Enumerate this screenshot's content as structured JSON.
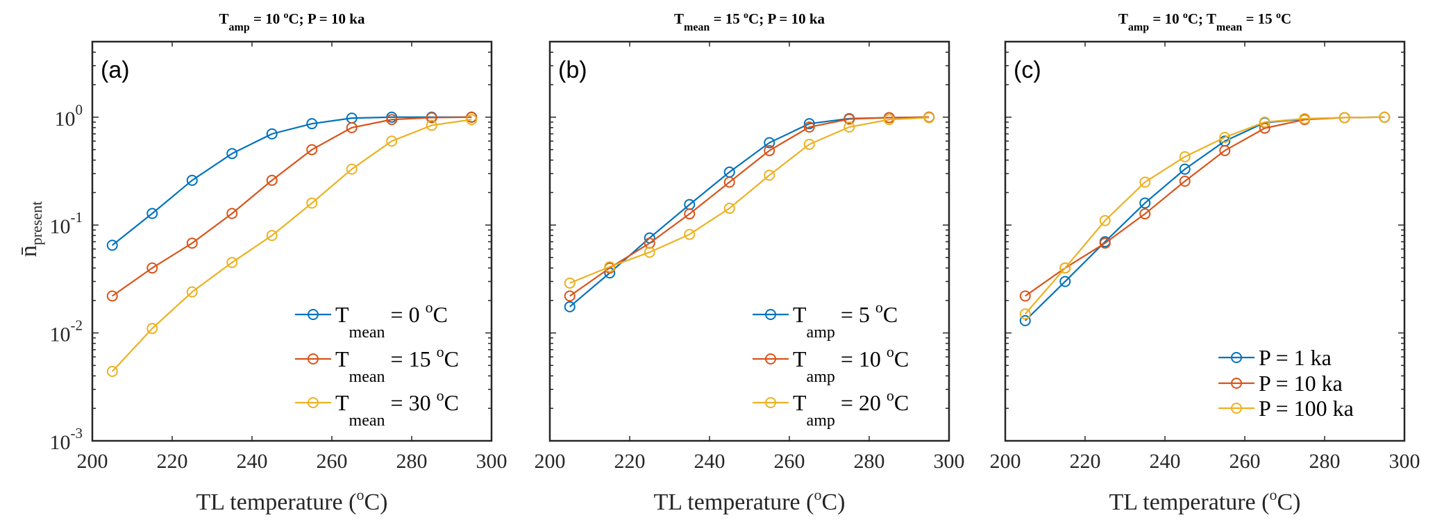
{
  "figure": {
    "ylabel_main": "n̄",
    "ylabel_sub": "present",
    "xlabel_text": "TL temperature (",
    "xlabel_sup": "o",
    "xlabel_end": "C)"
  },
  "chart_data": [
    {
      "type": "line",
      "panel_tag": "(a)",
      "title_parts": [
        {
          "text": "T",
          "style": "normal"
        },
        {
          "text": "amp",
          "style": "sub"
        },
        {
          "text": " = 10 ",
          "style": "normal"
        },
        {
          "text": "o",
          "style": "sup"
        },
        {
          "text": "C;     P = 10 ka",
          "style": "normal"
        }
      ],
      "xlabel": "TL temperature (°C)",
      "ylabel": "n̄_present",
      "xlim": [
        200,
        300
      ],
      "ylim_log10": [
        -3,
        0.7
      ],
      "yscale": "log",
      "xticks": [
        200,
        220,
        240,
        260,
        280,
        300
      ],
      "yticks": [
        {
          "exp": "0",
          "value": 1
        },
        {
          "exp": "-1",
          "value": 0.1
        },
        {
          "exp": "-2",
          "value": 0.01
        },
        {
          "exp": "-3",
          "value": 0.001
        }
      ],
      "show_yticklabels": true,
      "legend_position": "bottom-right",
      "x": [
        205,
        215,
        225,
        235,
        245,
        255,
        265,
        275,
        285,
        295
      ],
      "series": [
        {
          "name": "T_mean = 0 °C",
          "base": "T",
          "sub": "mean",
          "value_text": " = 0 ",
          "unit": "C",
          "color": "#0072BD",
          "values": [
            0.065,
            0.128,
            0.26,
            0.46,
            0.7,
            0.87,
            0.98,
            1.0,
            1.0,
            1.0
          ]
        },
        {
          "name": "T_mean = 15 °C",
          "base": "T",
          "sub": "mean",
          "value_text": " = 15 ",
          "unit": "C",
          "color": "#D95319",
          "values": [
            0.022,
            0.04,
            0.068,
            0.128,
            0.26,
            0.5,
            0.8,
            0.95,
            0.99,
            1.0
          ]
        },
        {
          "name": "T_mean = 30 °C",
          "base": "T",
          "sub": "mean",
          "value_text": " = 30 ",
          "unit": "C",
          "color": "#EDB120",
          "values": [
            0.0044,
            0.011,
            0.024,
            0.045,
            0.08,
            0.16,
            0.33,
            0.6,
            0.84,
            0.95
          ]
        }
      ]
    },
    {
      "type": "line",
      "panel_tag": "(b)",
      "title_parts": [
        {
          "text": "T",
          "style": "normal"
        },
        {
          "text": "mean",
          "style": "sub"
        },
        {
          "text": " = 15 ",
          "style": "normal"
        },
        {
          "text": "o",
          "style": "sup"
        },
        {
          "text": "C;     P = 10 ka",
          "style": "normal"
        }
      ],
      "xlabel": "TL temperature (°C)",
      "xlim": [
        200,
        300
      ],
      "ylim_log10": [
        -3,
        0.7
      ],
      "yscale": "log",
      "xticks": [
        200,
        220,
        240,
        260,
        280,
        300
      ],
      "yticks": [
        {
          "exp": "0",
          "value": 1
        },
        {
          "exp": "-1",
          "value": 0.1
        },
        {
          "exp": "-2",
          "value": 0.01
        },
        {
          "exp": "-3",
          "value": 0.001
        }
      ],
      "show_yticklabels": false,
      "legend_position": "bottom-right",
      "x": [
        205,
        215,
        225,
        235,
        245,
        255,
        265,
        275,
        285,
        295
      ],
      "series": [
        {
          "name": "T_amp = 5 °C",
          "base": "T",
          "sub": "amp",
          "value_text": " = 5 ",
          "unit": "C",
          "color": "#0072BD",
          "values": [
            0.0175,
            0.036,
            0.076,
            0.155,
            0.31,
            0.58,
            0.87,
            0.97,
            0.99,
            1.0
          ]
        },
        {
          "name": "T_amp = 10 °C",
          "base": "T",
          "sub": "amp",
          "value_text": " = 10 ",
          "unit": "C",
          "color": "#D95319",
          "values": [
            0.022,
            0.04,
            0.068,
            0.127,
            0.25,
            0.49,
            0.81,
            0.96,
            0.99,
            1.0
          ]
        },
        {
          "name": "T_amp = 20 °C",
          "base": "T",
          "sub": "amp",
          "value_text": " = 20 ",
          "unit": "C",
          "color": "#EDB120",
          "values": [
            0.029,
            0.041,
            0.056,
            0.082,
            0.143,
            0.29,
            0.56,
            0.81,
            0.95,
            0.99
          ]
        }
      ]
    },
    {
      "type": "line",
      "panel_tag": "(c)",
      "title_parts": [
        {
          "text": "T",
          "style": "normal"
        },
        {
          "text": "amp",
          "style": "sub"
        },
        {
          "text": " = 10 ",
          "style": "normal"
        },
        {
          "text": "o",
          "style": "sup"
        },
        {
          "text": "C;     T",
          "style": "normal"
        },
        {
          "text": "mean",
          "style": "sub"
        },
        {
          "text": " = 15 ",
          "style": "normal"
        },
        {
          "text": "o",
          "style": "sup"
        },
        {
          "text": "C",
          "style": "normal"
        }
      ],
      "xlabel": "TL temperature (°C)",
      "xlim": [
        200,
        300
      ],
      "ylim_log10": [
        -3,
        0.7
      ],
      "yscale": "log",
      "xticks": [
        200,
        220,
        240,
        260,
        280,
        300
      ],
      "yticks": [
        {
          "exp": "0",
          "value": 1
        },
        {
          "exp": "-1",
          "value": 0.1
        },
        {
          "exp": "-2",
          "value": 0.01
        },
        {
          "exp": "-3",
          "value": 0.001
        }
      ],
      "show_yticklabels": false,
      "legend_position": "bottom-right",
      "x": [
        205,
        215,
        225,
        235,
        245,
        255,
        265,
        275,
        285,
        295
      ],
      "series": [
        {
          "name": "P = 1 ka",
          "base": "P = 1 ka",
          "sub": "",
          "value_text": "",
          "unit": "",
          "color": "#0072BD",
          "values": [
            0.013,
            0.03,
            0.07,
            0.16,
            0.33,
            0.6,
            0.89,
            0.96,
            0.99,
            1.0
          ]
        },
        {
          "name": "P = 10 ka",
          "base": "P = 10 ka",
          "sub": "",
          "value_text": "",
          "unit": "",
          "color": "#D95319",
          "values": [
            0.022,
            0.04,
            0.068,
            0.127,
            0.255,
            0.49,
            0.79,
            0.95,
            0.99,
            1.0
          ]
        },
        {
          "name": "P = 100 ka",
          "base": "P = 100 ka",
          "sub": "",
          "value_text": "",
          "unit": "",
          "color": "#EDB120",
          "values": [
            0.015,
            0.04,
            0.11,
            0.25,
            0.43,
            0.65,
            0.9,
            0.97,
            0.99,
            1.0
          ]
        }
      ]
    }
  ]
}
